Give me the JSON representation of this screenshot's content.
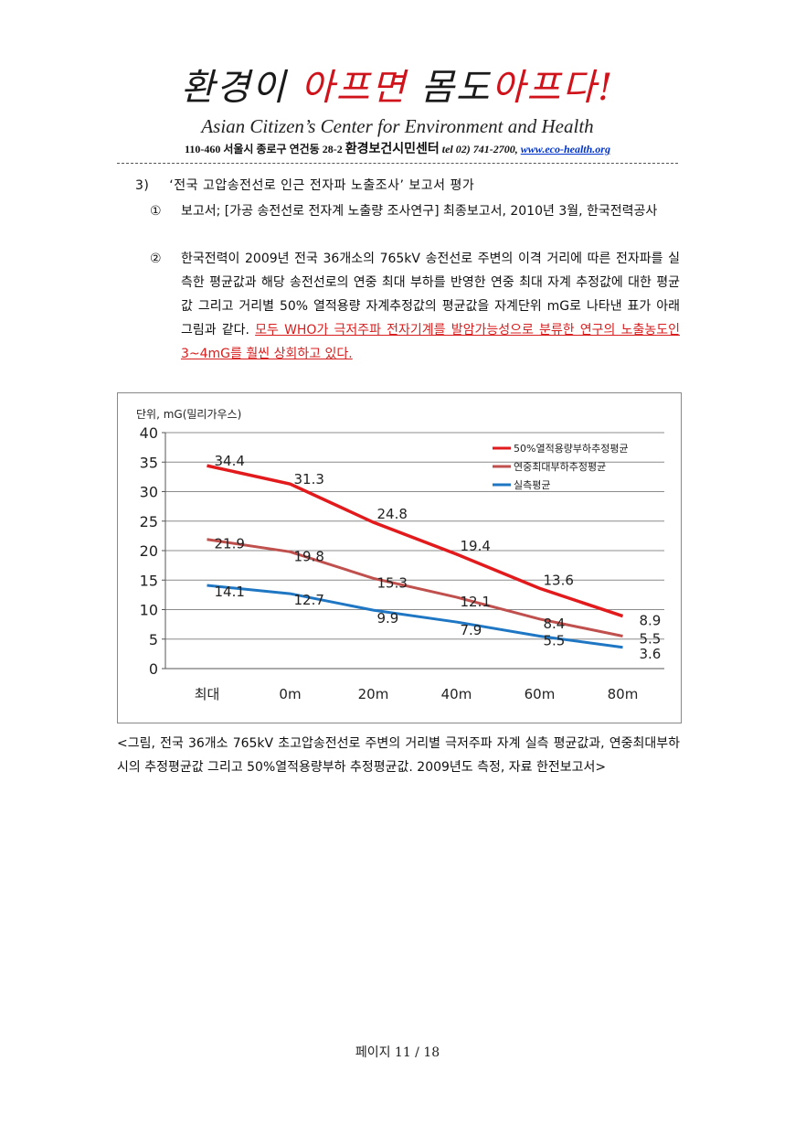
{
  "header": {
    "slogan_black_1": "환경이 ",
    "slogan_red_1": "아프면 ",
    "slogan_black_2": "몸도",
    "slogan_red_2": "아프다!",
    "org_english": "Asian Citizen’s Center for Environment and Health",
    "addr_postal": "110-460 서울시 종로구 연건동 28-2",
    "addr_org_kr": "환경보건시민센터",
    "addr_tel": "tel 02) 741-2700,",
    "addr_web": "www.eco-health.org"
  },
  "section": {
    "number": "3)",
    "title": "‘전국 고압송전선로 인근 전자파 노출조사’ 보고서 평가",
    "items": [
      {
        "mark": "①",
        "text": "보고서; [가공 송전선로 전자계 노출량 조사연구] 최종보고서, 2010년 3월, 한국전력공사"
      },
      {
        "mark": "②",
        "text": "한국전력이 2009년 전국 36개소의 765kV 송전선로 주변의 이격 거리에 따른 전자파를 실측한 평균값과 해당 송전선로의 연중 최대 부하를 반영한 연중 최대 자계 추정값에 대한 평균값 그리고 거리별 50% 열적용량 자계추정값의 평균값을 자계단위 mG로 나타낸 표가 아래 그림과 같다. ",
        "highlight": "모두 WHO가 극저주파 전자기계를 발암가능성으로 분류한 연구의 노출농도인 3~4mG를 훨씬 상회하고 있다."
      }
    ]
  },
  "chart_data": {
    "type": "line",
    "ylabel": "단위, mG(밀리가우스)",
    "categories": [
      "최대",
      "0m",
      "20m",
      "40m",
      "60m",
      "80m"
    ],
    "ylim": [
      0,
      40
    ],
    "yticks": [
      "0",
      "5",
      "10",
      "15",
      "20",
      "25",
      "30",
      "35",
      "40"
    ],
    "grid": true,
    "legend_position": "top-right",
    "series": [
      {
        "name": "50%열적용량부하추정평균",
        "color": "#e31a1c",
        "values": [
          34.4,
          31.3,
          24.8,
          19.4,
          13.6,
          8.9
        ]
      },
      {
        "name": "연중최대부하추정평균",
        "color": "#c0504d",
        "values": [
          21.9,
          19.8,
          15.3,
          12.1,
          8.4,
          5.5
        ]
      },
      {
        "name": "실측평균",
        "color": "#1f77c4",
        "values": [
          14.1,
          12.7,
          9.9,
          7.9,
          5.5,
          3.6
        ]
      }
    ]
  },
  "caption": "<그림, 전국 36개소 765kV 초고압송전선로 주변의 거리별 극저주파 자계 실측 평균값과, 연중최대부하시의 추정평균값 그리고 50%열적용량부하 추정평균값. 2009년도 측정, 자료 한전보고서>",
  "footer": {
    "page_label": "페이지 11 / 18"
  }
}
